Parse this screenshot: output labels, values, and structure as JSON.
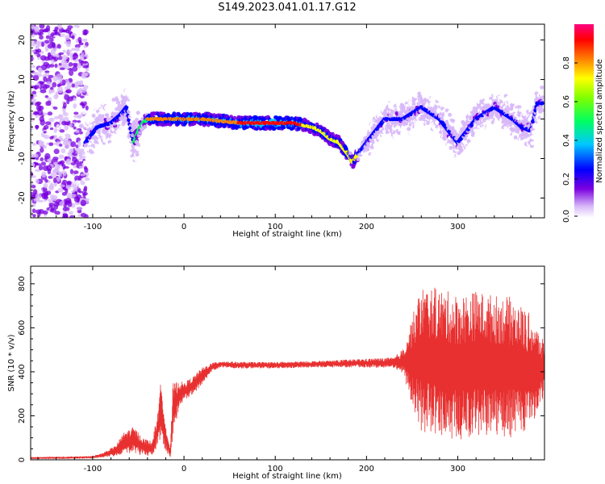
{
  "title": "S149.2023.041.01.17.G12",
  "chart_data": [
    {
      "type": "heatmap",
      "xlabel": "Height of straight line (km)",
      "ylabel": "Frequency (Hz)",
      "xlim": [
        -168,
        395
      ],
      "ylim": [
        -25,
        24
      ],
      "xticks": [
        -100,
        0,
        100,
        200,
        300
      ],
      "yticks": [
        -20,
        -10,
        0,
        10,
        20
      ],
      "grid": false,
      "colorbar": {
        "label": "Normalized spectral amplitude",
        "ticks": [
          "0.0",
          "0.2",
          "0.4",
          "0.6",
          "0.8"
        ],
        "range": [
          0,
          1
        ],
        "colormap": [
          "#ffffff",
          "#c8a0f0",
          "#7a00e0",
          "#0000ff",
          "#00ffff",
          "#00ff00",
          "#ffff00",
          "#ff8000",
          "#ff0000",
          "#ff0080"
        ]
      },
      "ridge_frequency_hz": {
        "x": [
          -108,
          -95,
          -80,
          -70,
          -63,
          -58,
          -55,
          -50,
          -45,
          -40,
          -30,
          -20,
          -10,
          0,
          20,
          40,
          60,
          80,
          100,
          120,
          130,
          140,
          150,
          160,
          170,
          180,
          185,
          190,
          200,
          210,
          220,
          240,
          260,
          280,
          300,
          320,
          340,
          360,
          370,
          380,
          387,
          393
        ],
        "y": [
          -6,
          -2,
          -1,
          1,
          3,
          -3,
          -6,
          -3,
          -1,
          0,
          0,
          0,
          0,
          0,
          0,
          -0.5,
          -1,
          -1,
          -1,
          -1,
          -1.5,
          -2,
          -3,
          -5,
          -6,
          -9,
          -11,
          -9,
          -6,
          -3,
          0,
          0,
          3,
          0,
          -6,
          0,
          3,
          0,
          -2,
          -3,
          4,
          4
        ]
      }
    },
    {
      "type": "line",
      "xlabel": "Height of straight line (km)",
      "ylabel": "SNR (10 * v/v)",
      "xlim": [
        -168,
        395
      ],
      "ylim": [
        0,
        880
      ],
      "xticks": [
        -100,
        0,
        100,
        200,
        300
      ],
      "yticks": [
        0,
        200,
        400,
        600,
        800
      ],
      "grid": false,
      "color": "#e83030",
      "series": [
        {
          "x": [
            -168,
            -120,
            -100,
            -90,
            -75,
            -65,
            -55,
            -45,
            -35,
            -28,
            -25,
            -20,
            -15,
            -12,
            -5,
            0,
            10,
            20,
            30,
            40,
            60,
            100,
            150,
            200,
            230,
            240,
            250,
            260,
            280,
            300,
            320,
            340,
            360,
            380,
            395
          ],
          "y": [
            8,
            10,
            12,
            20,
            40,
            80,
            90,
            60,
            50,
            150,
            240,
            100,
            30,
            230,
            300,
            310,
            340,
            380,
            420,
            435,
            430,
            430,
            435,
            440,
            440,
            445,
            450,
            460,
            440,
            420,
            440,
            430,
            420,
            400,
            410
          ],
          "spread": [
            5,
            5,
            6,
            10,
            25,
            50,
            60,
            40,
            35,
            80,
            140,
            60,
            20,
            120,
            60,
            40,
            40,
            40,
            20,
            15,
            15,
            15,
            15,
            20,
            25,
            60,
            200,
            330,
            340,
            330,
            330,
            320,
            320,
            260,
            120
          ]
        }
      ]
    }
  ]
}
